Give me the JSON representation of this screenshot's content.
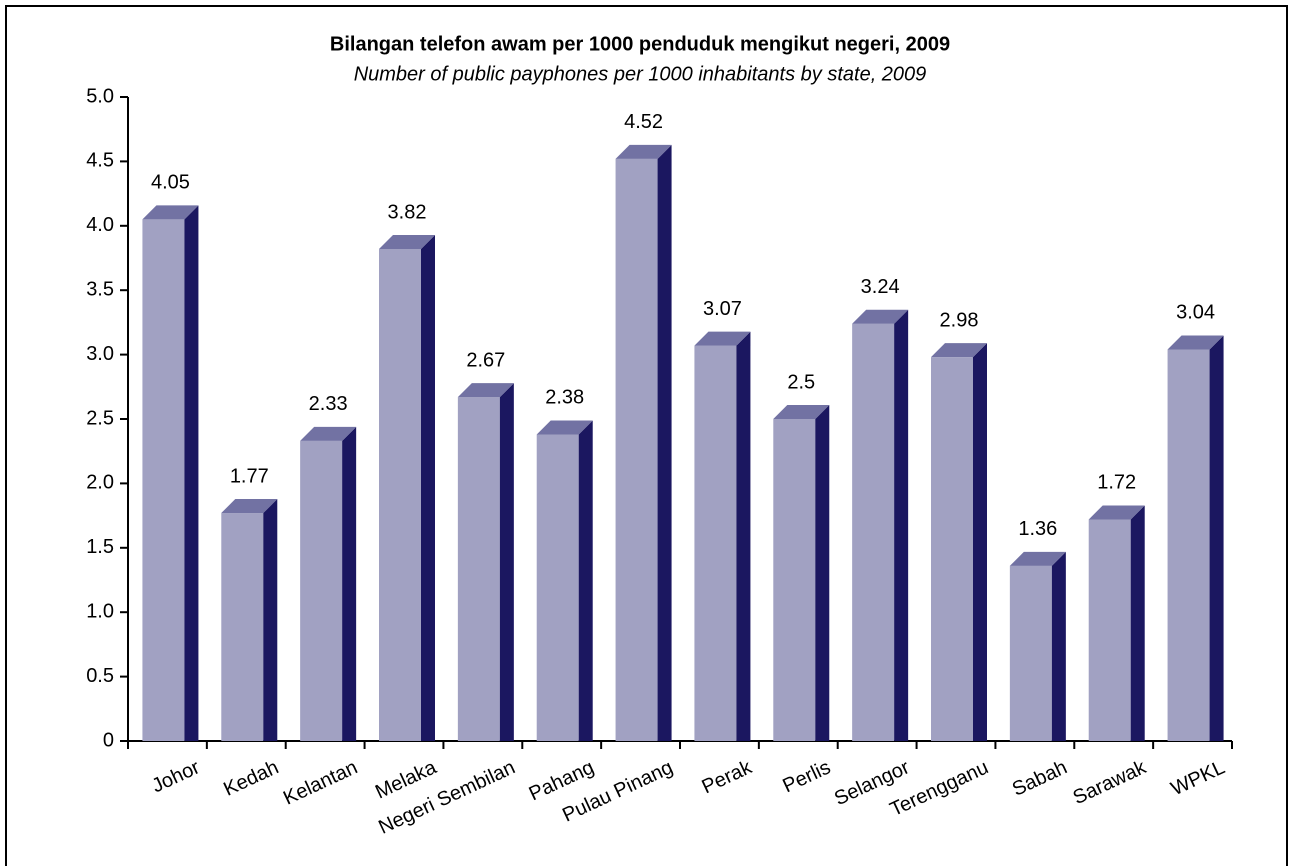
{
  "chart_data": {
    "type": "bar3d",
    "title": "Bilangan telefon awam per 1000 penduduk mengikut negeri, 2009",
    "subtitle": "Number of public payphones per 1000 inhabitants by state, 2009",
    "categories": [
      "Johor",
      "Kedah",
      "Kelantan",
      "Melaka",
      "Negeri Sembilan",
      "Pahang",
      "Pulau Pinang",
      "Perak",
      "Perlis",
      "Selangor",
      "Terengganu",
      "Sabah",
      "Sarawak",
      "WPKL"
    ],
    "values": [
      4.05,
      1.77,
      2.33,
      3.82,
      2.67,
      2.38,
      4.52,
      3.07,
      2.5,
      3.24,
      2.98,
      1.36,
      1.72,
      3.04
    ],
    "colors": {
      "front": "#a1a1c2",
      "side": "#1b1760",
      "top": "#7272a3"
    },
    "ylim": [
      0,
      5
    ],
    "yticks": [
      0,
      0.5,
      {
        "value": 1,
        "label": "1.0"
      },
      1.5,
      {
        "value": 2,
        "label": "2.0"
      },
      2.5,
      {
        "value": 3,
        "label": "3.0"
      },
      3.5,
      {
        "value": 4,
        "label": "4.0"
      },
      4.5,
      {
        "value": 5,
        "label": "5.0"
      }
    ],
    "grid": false
  }
}
